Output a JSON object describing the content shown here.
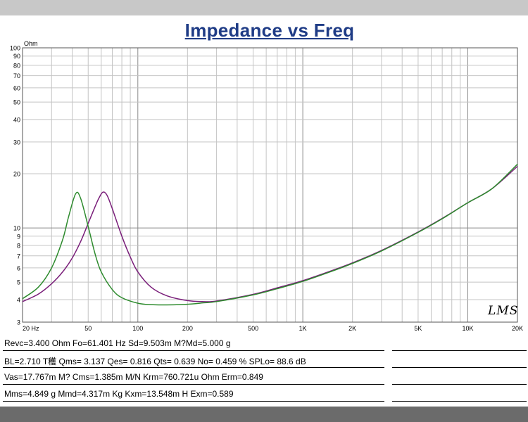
{
  "chart_data": {
    "type": "line",
    "title": "Impedance vs Freq",
    "ylabel": "Ohm",
    "xscale": "log",
    "yscale": "log",
    "xlim": [
      20,
      20000
    ],
    "ylim": [
      3,
      100
    ],
    "grid": true,
    "x_tick_labels": [
      {
        "value": 20,
        "label": "20 Hz"
      },
      {
        "value": 50,
        "label": "50"
      },
      {
        "value": 100,
        "label": "100"
      },
      {
        "value": 200,
        "label": "200"
      },
      {
        "value": 500,
        "label": "500"
      },
      {
        "value": 1000,
        "label": "1K"
      },
      {
        "value": 2000,
        "label": "2K"
      },
      {
        "value": 5000,
        "label": "5K"
      },
      {
        "value": 10000,
        "label": "10K"
      },
      {
        "value": 20000,
        "label": "20K"
      }
    ],
    "y_tick_labels": [
      {
        "value": 100,
        "label": "100"
      },
      {
        "value": 90,
        "label": "90"
      },
      {
        "value": 80,
        "label": "80"
      },
      {
        "value": 70,
        "label": "70"
      },
      {
        "value": 60,
        "label": "60"
      },
      {
        "value": 50,
        "label": "50"
      },
      {
        "value": 40,
        "label": "40"
      },
      {
        "value": 30,
        "label": "30"
      },
      {
        "value": 20,
        "label": "20"
      },
      {
        "value": 10,
        "label": "10"
      },
      {
        "value": 9,
        "label": "9"
      },
      {
        "value": 8,
        "label": "8"
      },
      {
        "value": 7,
        "label": "7"
      },
      {
        "value": 6,
        "label": "6"
      },
      {
        "value": 5,
        "label": "5"
      },
      {
        "value": 4,
        "label": "4"
      },
      {
        "value": 3,
        "label": "3"
      }
    ],
    "series": [
      {
        "color": "#7a1f7a",
        "x": [
          20,
          25,
          30,
          35,
          40,
          45,
          50,
          55,
          58,
          61.4,
          65,
          70,
          80,
          90,
          100,
          120,
          150,
          200,
          250,
          300,
          500,
          700,
          1000,
          1500,
          2000,
          3000,
          5000,
          7000,
          10000,
          14000,
          20000
        ],
        "y": [
          3.9,
          4.3,
          4.9,
          5.7,
          6.8,
          8.4,
          10.6,
          13.1,
          14.6,
          15.8,
          15.2,
          12.8,
          9.0,
          6.9,
          5.7,
          4.7,
          4.2,
          3.95,
          3.9,
          3.93,
          4.28,
          4.65,
          5.1,
          5.8,
          6.4,
          7.5,
          9.5,
          11.3,
          13.8,
          16.5,
          22
        ]
      },
      {
        "color": "#2e8b2e",
        "x": [
          20,
          25,
          30,
          35,
          38,
          42,
          45,
          50,
          55,
          60,
          70,
          80,
          100,
          120,
          150,
          200,
          250,
          300,
          500,
          700,
          1000,
          1500,
          2000,
          3000,
          5000,
          7000,
          10000,
          14000,
          20000
        ],
        "y": [
          4.05,
          4.7,
          6.0,
          8.6,
          11.5,
          15.5,
          14.6,
          10.2,
          7.2,
          5.7,
          4.55,
          4.1,
          3.82,
          3.75,
          3.74,
          3.77,
          3.84,
          3.9,
          4.25,
          4.6,
          5.05,
          5.75,
          6.35,
          7.45,
          9.45,
          11.25,
          13.8,
          16.5,
          22.6
        ]
      }
    ]
  },
  "logo_text": "LMS",
  "params": [
    "Revc=3.400 Ohm  Fo=61.401 Hz  Sd=9.503m M?Md=5.000 g",
    "BL=2.710 T穫  Qms= 3.137  Qes= 0.816  Qts= 0.639  No= 0.459 %  SPLo= 88.6 dB",
    "Vas=17.767m M? Cms=1.385m M/N  Krm=760.721u Ohm  Erm=0.849",
    "Mms=4.849 g  Mmd=4.317m Kg  Kxm=13.548m H  Exm=0.589"
  ]
}
